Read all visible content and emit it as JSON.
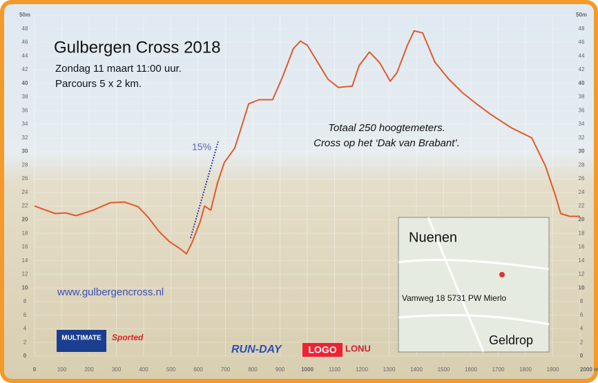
{
  "chart_data": {
    "type": "line",
    "title": "Gulbergen Cross 2018",
    "subtitle": [
      "Zondag 11 maart 11:00 uur.",
      "Parcours 5 x 2 km."
    ],
    "annotations": [
      "Totaal 250 hoogtemeters.",
      "Cross op het ‘Dak van Brabant’.",
      "15%"
    ],
    "x": [
      0,
      76,
      114,
      152,
      215,
      278,
      329,
      380,
      418,
      456,
      494,
      532,
      557,
      577,
      608,
      623,
      646,
      671,
      696,
      734,
      754,
      785,
      823,
      873,
      911,
      949,
      975,
      1000,
      1038,
      1076,
      1114,
      1165,
      1190,
      1228,
      1266,
      1304,
      1329,
      1367,
      1392,
      1423,
      1468,
      1519,
      1570,
      1620,
      1671,
      1747,
      1823,
      1873,
      1911,
      1929,
      1962,
      2000
    ],
    "values": [
      22,
      20.9,
      21,
      20.6,
      21.4,
      22.5,
      22.6,
      21.9,
      20.3,
      18.3,
      16.8,
      15.8,
      15,
      16.6,
      19.8,
      22,
      21.4,
      25.4,
      28.4,
      30.5,
      33,
      37,
      37.6,
      37.6,
      41.1,
      45.1,
      46.2,
      45.6,
      43.1,
      40.6,
      39.4,
      39.6,
      42.6,
      44.6,
      43,
      40.3,
      41.6,
      45.6,
      47.7,
      47.4,
      43.1,
      40.6,
      38.6,
      37,
      35.5,
      33.5,
      32,
      27.9,
      23.4,
      20.9,
      20.5,
      20.5
    ],
    "color": "#e0582a",
    "grid": true,
    "xlim": [
      0,
      2000
    ],
    "xticks": [
      0,
      100,
      200,
      300,
      400,
      500,
      600,
      700,
      800,
      900,
      1000,
      1100,
      1200,
      1300,
      1400,
      1500,
      1600,
      1700,
      1800,
      1900,
      {
        "value": 2000,
        "label": "2000 m"
      }
    ],
    "ylim": [
      0,
      50
    ],
    "yticks": [
      0,
      2,
      4,
      6,
      8,
      10,
      12,
      14,
      16,
      18,
      20,
      22,
      24,
      26,
      28,
      30,
      32,
      34,
      36,
      38,
      40,
      42,
      44,
      46,
      48,
      {
        "value": 50,
        "label": "50m"
      }
    ]
  },
  "website": "www.gulbergencross.nl",
  "map": {
    "labels": [
      "Nuenen",
      "Vamweg 18 5731 PW Mierlo",
      "Geldrop"
    ]
  },
  "sponsors": [
    "MULTIMATE",
    "Sported",
    "RUN-DAY",
    "LOGO",
    "LONU"
  ]
}
